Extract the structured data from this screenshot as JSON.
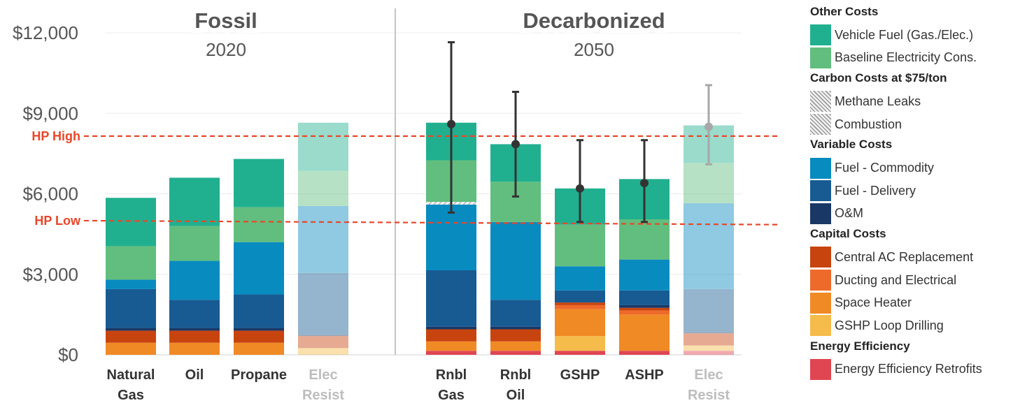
{
  "chart_data": {
    "type": "bar",
    "stacked": true,
    "ylim": [
      0,
      12000
    ],
    "y_ticks": [
      "$0",
      "$3,000",
      "$6,000",
      "$9,000",
      "$12,000"
    ],
    "y_tick_values": [
      0,
      3000,
      6000,
      9000,
      12000
    ],
    "grid": true,
    "legend_position": "right",
    "panels": [
      {
        "title": "Fossil",
        "subtitle": "2020"
      },
      {
        "title": "Decarbonized",
        "subtitle": "2050"
      }
    ],
    "reference_lines": [
      {
        "label": "HP High",
        "y_start": 8150,
        "y_end": 8150,
        "color": "#E8472A"
      },
      {
        "label": "HP Low",
        "y_start": 5000,
        "y_end": 4850,
        "color": "#E8472A"
      }
    ],
    "categories": [
      {
        "label_lines": [
          "Natural",
          "Gas"
        ],
        "panel": 0,
        "faded": false
      },
      {
        "label_lines": [
          "Oil"
        ],
        "panel": 0,
        "faded": false
      },
      {
        "label_lines": [
          "Propane"
        ],
        "panel": 0,
        "faded": false
      },
      {
        "label_lines": [
          "Elec",
          "Resist"
        ],
        "panel": 0,
        "faded": true
      },
      {
        "label_lines": [
          "Rnbl",
          "Gas"
        ],
        "panel": 1,
        "faded": false
      },
      {
        "label_lines": [
          "Rnbl",
          "Oil"
        ],
        "panel": 1,
        "faded": false
      },
      {
        "label_lines": [
          "GSHP"
        ],
        "panel": 1,
        "faded": false
      },
      {
        "label_lines": [
          "ASHP"
        ],
        "panel": 1,
        "faded": false
      },
      {
        "label_lines": [
          "Elec",
          "Resist"
        ],
        "panel": 1,
        "faded": true
      }
    ],
    "series": [
      {
        "name": "Energy Efficiency Retrofits",
        "group": "Energy Efficiency",
        "color": "#E04552",
        "values": [
          0,
          0,
          0,
          0,
          150,
          150,
          150,
          150,
          150
        ]
      },
      {
        "name": "GSHP Loop Drilling",
        "group": "Capital Costs",
        "color": "#F5BB4B",
        "values": [
          0,
          0,
          0,
          250,
          0,
          0,
          550,
          0,
          200
        ]
      },
      {
        "name": "Space Heater",
        "group": "Capital Costs",
        "color": "#F08A24",
        "values": [
          450,
          450,
          450,
          0,
          350,
          350,
          1000,
          1350,
          0
        ]
      },
      {
        "name": "Ducting and Electrical",
        "group": "Capital Costs",
        "color": "#EE6A2A",
        "values": [
          0,
          0,
          0,
          0,
          0,
          0,
          150,
          150,
          0
        ]
      },
      {
        "name": "Central AC Replacement",
        "group": "Capital Costs",
        "color": "#C8440F",
        "values": [
          450,
          450,
          450,
          450,
          450,
          450,
          100,
          100,
          450
        ]
      },
      {
        "name": "O&M",
        "group": "Variable Costs",
        "color": "#1A3866",
        "values": [
          100,
          100,
          100,
          50,
          100,
          100,
          0,
          100,
          50
        ]
      },
      {
        "name": "Fuel - Delivery",
        "group": "Variable Costs",
        "color": "#175B92",
        "values": [
          1450,
          1050,
          1250,
          2300,
          2100,
          1000,
          450,
          550,
          1600
        ]
      },
      {
        "name": "Fuel - Commodity",
        "group": "Variable Costs",
        "color": "#088BBF",
        "values": [
          350,
          1450,
          1950,
          2500,
          2450,
          2900,
          900,
          1150,
          3200
        ]
      },
      {
        "name": "Combustion",
        "group": "Carbon Costs at $75/ton",
        "color": "#BDBDBD",
        "hatch": true,
        "values": [
          0,
          0,
          0,
          0,
          50,
          0,
          0,
          0,
          0
        ]
      },
      {
        "name": "Methane Leaks",
        "group": "Carbon Costs at $75/ton",
        "color": "#E2E2E2",
        "hatch": true,
        "values": [
          0,
          0,
          0,
          0,
          50,
          0,
          0,
          0,
          0
        ]
      },
      {
        "name": "Baseline Electricity Cons.",
        "group": "Other Costs",
        "color": "#62BE7E",
        "values": [
          1250,
          1300,
          1300,
          1300,
          1550,
          1500,
          1550,
          1500,
          1500
        ]
      },
      {
        "name": "Vehicle Fuel (Gas./Elec.)",
        "group": "Other Costs",
        "color": "#21B08F",
        "values": [
          1800,
          1800,
          1800,
          1800,
          1400,
          1400,
          1350,
          1500,
          1400
        ]
      }
    ],
    "error_bars": [
      {
        "category_index": 4,
        "center": 8600,
        "low": 5300,
        "high": 11650
      },
      {
        "category_index": 5,
        "center": 7850,
        "low": 5900,
        "high": 9800
      },
      {
        "category_index": 6,
        "center": 6200,
        "low": 4950,
        "high": 8000
      },
      {
        "category_index": 7,
        "center": 6400,
        "low": 4950,
        "high": 8000
      },
      {
        "category_index": 8,
        "center": 8500,
        "low": 7100,
        "high": 10050,
        "faded": true
      }
    ]
  },
  "legend": {
    "groups": [
      {
        "title": "Other Costs",
        "items": [
          {
            "label": "Vehicle Fuel (Gas./Elec.)",
            "color": "#21B08F"
          },
          {
            "label": "Baseline Electricity Cons.",
            "color": "#62BE7E"
          }
        ]
      },
      {
        "title": "Carbon Costs at $75/ton",
        "items": [
          {
            "label": "Methane Leaks",
            "color": "#E2E2E2",
            "hatch": true
          },
          {
            "label": "Combustion",
            "color": "#BDBDBD",
            "hatch": true
          }
        ]
      },
      {
        "title": "Variable Costs",
        "items": [
          {
            "label": "Fuel - Commodity",
            "color": "#088BBF"
          },
          {
            "label": "Fuel - Delivery",
            "color": "#175B92"
          },
          {
            "label": "O&M",
            "color": "#1A3866"
          }
        ]
      },
      {
        "title": "Capital Costs",
        "items": [
          {
            "label": "Central AC Replacement",
            "color": "#C8440F"
          },
          {
            "label": "Ducting and Electrical",
            "color": "#EE6A2A"
          },
          {
            "label": "Space Heater",
            "color": "#F08A24"
          },
          {
            "label": "GSHP Loop Drilling",
            "color": "#F5BB4B"
          }
        ]
      },
      {
        "title": "Energy Efficiency",
        "items": [
          {
            "label": "Energy Efficiency Retrofits",
            "color": "#E04552"
          }
        ]
      }
    ]
  }
}
